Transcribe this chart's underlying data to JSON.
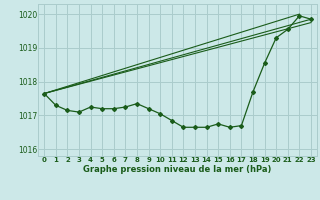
{
  "xlabel": "Graphe pression niveau de la mer (hPa)",
  "background_color": "#cce8e8",
  "grid_color": "#aacccc",
  "line_color": "#1a5c1a",
  "hours": [
    0,
    1,
    2,
    3,
    4,
    5,
    6,
    7,
    8,
    9,
    10,
    11,
    12,
    13,
    14,
    15,
    16,
    17,
    18,
    19,
    20,
    21,
    22,
    23
  ],
  "pressure": [
    1017.65,
    1017.3,
    1017.15,
    1017.1,
    1017.25,
    1017.2,
    1017.2,
    1017.25,
    1017.35,
    1017.2,
    1017.05,
    1016.85,
    1016.65,
    1016.65,
    1016.65,
    1016.75,
    1016.65,
    1016.7,
    1017.7,
    1018.55,
    1019.3,
    1019.55,
    1019.95,
    1019.85
  ],
  "trend_line1": [
    [
      0,
      1017.65
    ],
    [
      22,
      1020.0
    ]
  ],
  "trend_line2": [
    [
      0,
      1017.65
    ],
    [
      23,
      1019.85
    ]
  ],
  "trend_line3": [
    [
      0,
      1017.65
    ],
    [
      23,
      1019.75
    ]
  ],
  "ylim": [
    1015.8,
    1020.3
  ],
  "yticks": [
    1016,
    1017,
    1018,
    1019,
    1020
  ],
  "xticks": [
    0,
    1,
    2,
    3,
    4,
    5,
    6,
    7,
    8,
    9,
    10,
    11,
    12,
    13,
    14,
    15,
    16,
    17,
    18,
    19,
    20,
    21,
    22,
    23
  ],
  "ytick_fontsize": 5.5,
  "xtick_fontsize": 5.0,
  "xlabel_fontsize": 6.0
}
